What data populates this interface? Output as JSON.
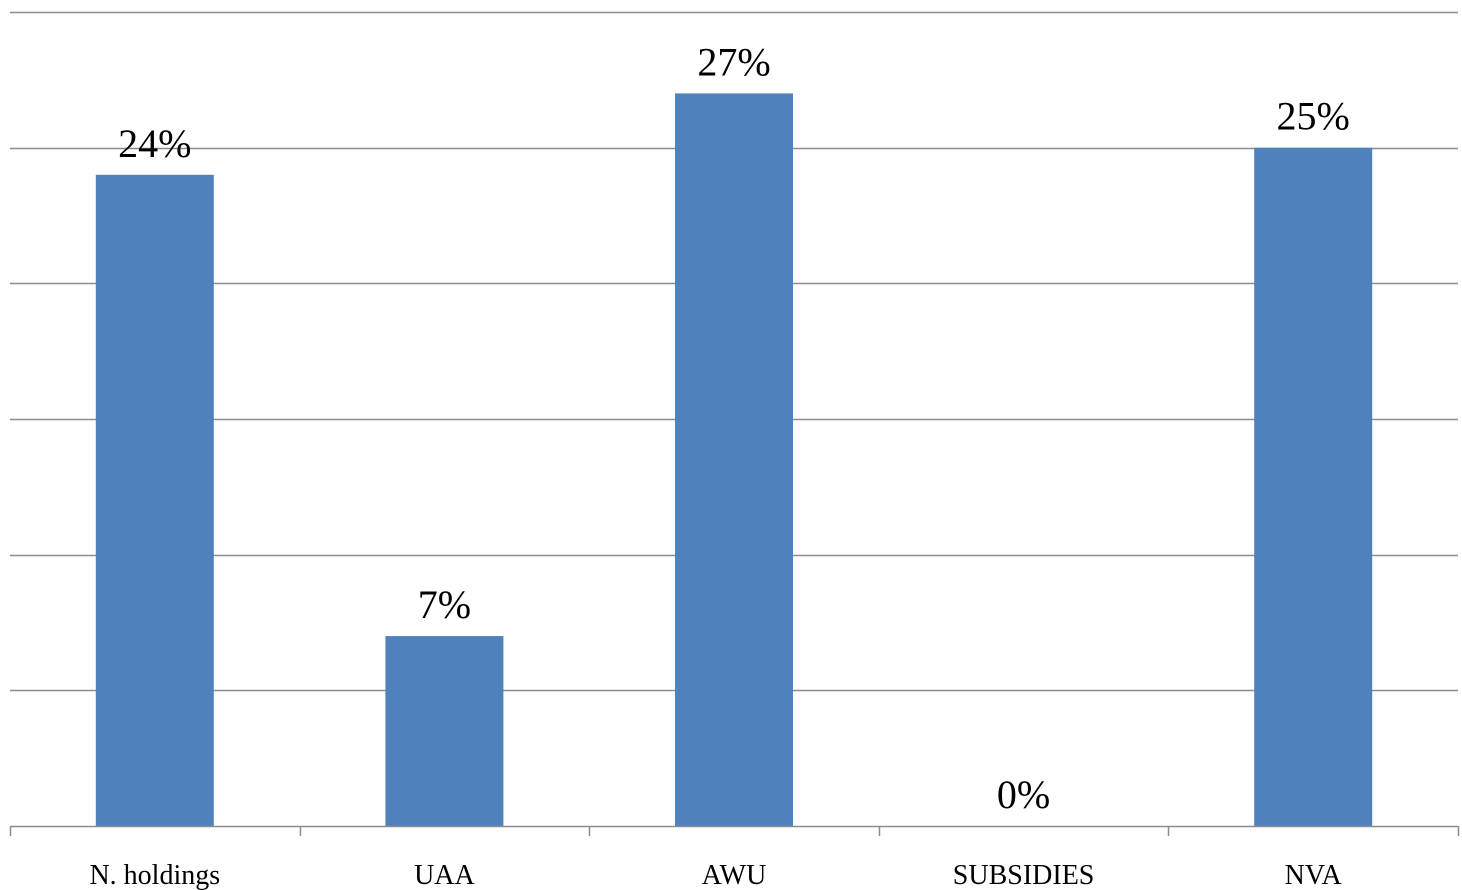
{
  "chart_data": {
    "type": "bar",
    "categories": [
      "N. holdings",
      "UAA",
      "AWU",
      "SUBSIDIES",
      "NVA"
    ],
    "values": [
      0.24,
      0.07,
      0.27,
      0.0,
      0.25
    ],
    "data_labels": [
      "24%",
      "7%",
      "27%",
      "0%",
      "25%"
    ],
    "ylim": [
      0,
      0.3
    ],
    "y_gridlines": [
      0.05,
      0.1,
      0.15,
      0.2,
      0.25,
      0.3
    ],
    "grid": true,
    "legend": "none",
    "title": "",
    "xlabel": "",
    "ylabel": "",
    "colors": {
      "bar": "#4f81bd",
      "grid": "#8c8c8c",
      "text": "#000000"
    }
  }
}
